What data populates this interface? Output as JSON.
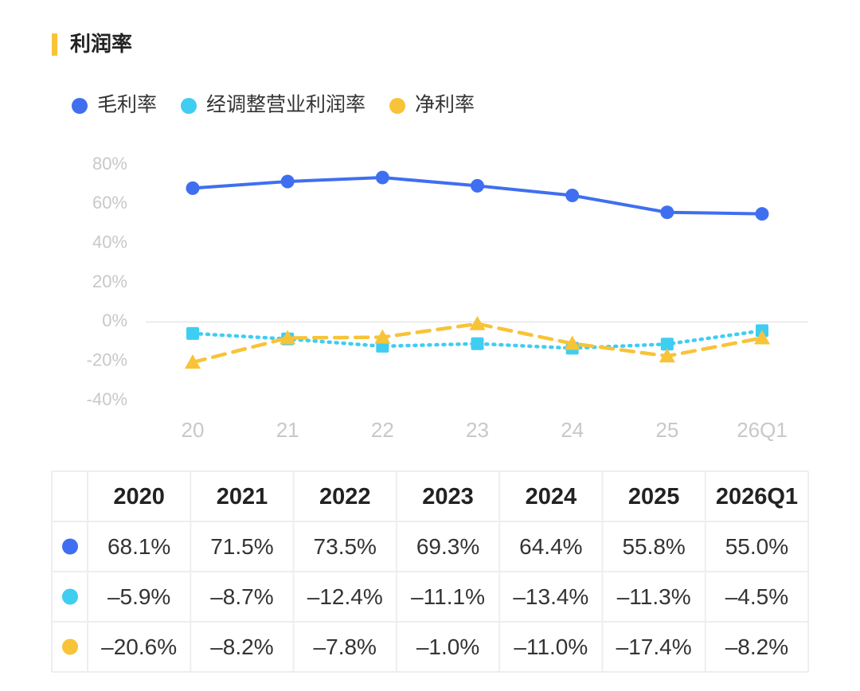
{
  "chart_data": {
    "type": "line",
    "title": "利润率",
    "categories": [
      "20",
      "21",
      "22",
      "23",
      "24",
      "25",
      "26Q1"
    ],
    "series": [
      {
        "name": "毛利率",
        "color": "#3f6ff0",
        "marker": "circle",
        "line_style": "solid",
        "values": [
          68.1,
          71.5,
          73.5,
          69.3,
          64.4,
          55.8,
          55.0
        ],
        "value_labels": [
          "68.1%",
          "71.5%",
          "73.5%",
          "69.3%",
          "64.4%",
          "55.8%",
          "55.0%"
        ]
      },
      {
        "name": "经调整营业利润率",
        "color": "#3fcdf2",
        "marker": "square",
        "line_style": "dotted",
        "values": [
          -5.9,
          -8.7,
          -12.4,
          -11.1,
          -13.4,
          -11.3,
          -4.5
        ],
        "value_labels": [
          "–5.9%",
          "–8.7%",
          "–12.4%",
          "–11.1%",
          "–13.4%",
          "–11.3%",
          "–4.5%"
        ]
      },
      {
        "name": "净利率",
        "color": "#f7c338",
        "marker": "triangle",
        "line_style": "dashed",
        "values": [
          -20.6,
          -8.2,
          -7.8,
          -1.0,
          -11.0,
          -17.4,
          -8.2
        ],
        "value_labels": [
          "–20.6%",
          "–8.2%",
          "–7.8%",
          "–1.0%",
          "–11.0%",
          "–17.4%",
          "–8.2%"
        ]
      }
    ],
    "ylim": [
      -40,
      80
    ],
    "yticks": [
      {
        "value": 80,
        "label": "80%"
      },
      {
        "value": 60,
        "label": "60%"
      },
      {
        "value": 40,
        "label": "40%"
      },
      {
        "value": 20,
        "label": "20%"
      },
      {
        "value": 0,
        "label": "0%"
      },
      {
        "value": -20,
        "label": "-20%"
      },
      {
        "value": -40,
        "label": "-40%"
      }
    ],
    "grid": false,
    "legend": "top-left"
  },
  "table": {
    "columns": [
      "2020",
      "2021",
      "2022",
      "2023",
      "2024",
      "2025",
      "2026Q1"
    ]
  }
}
